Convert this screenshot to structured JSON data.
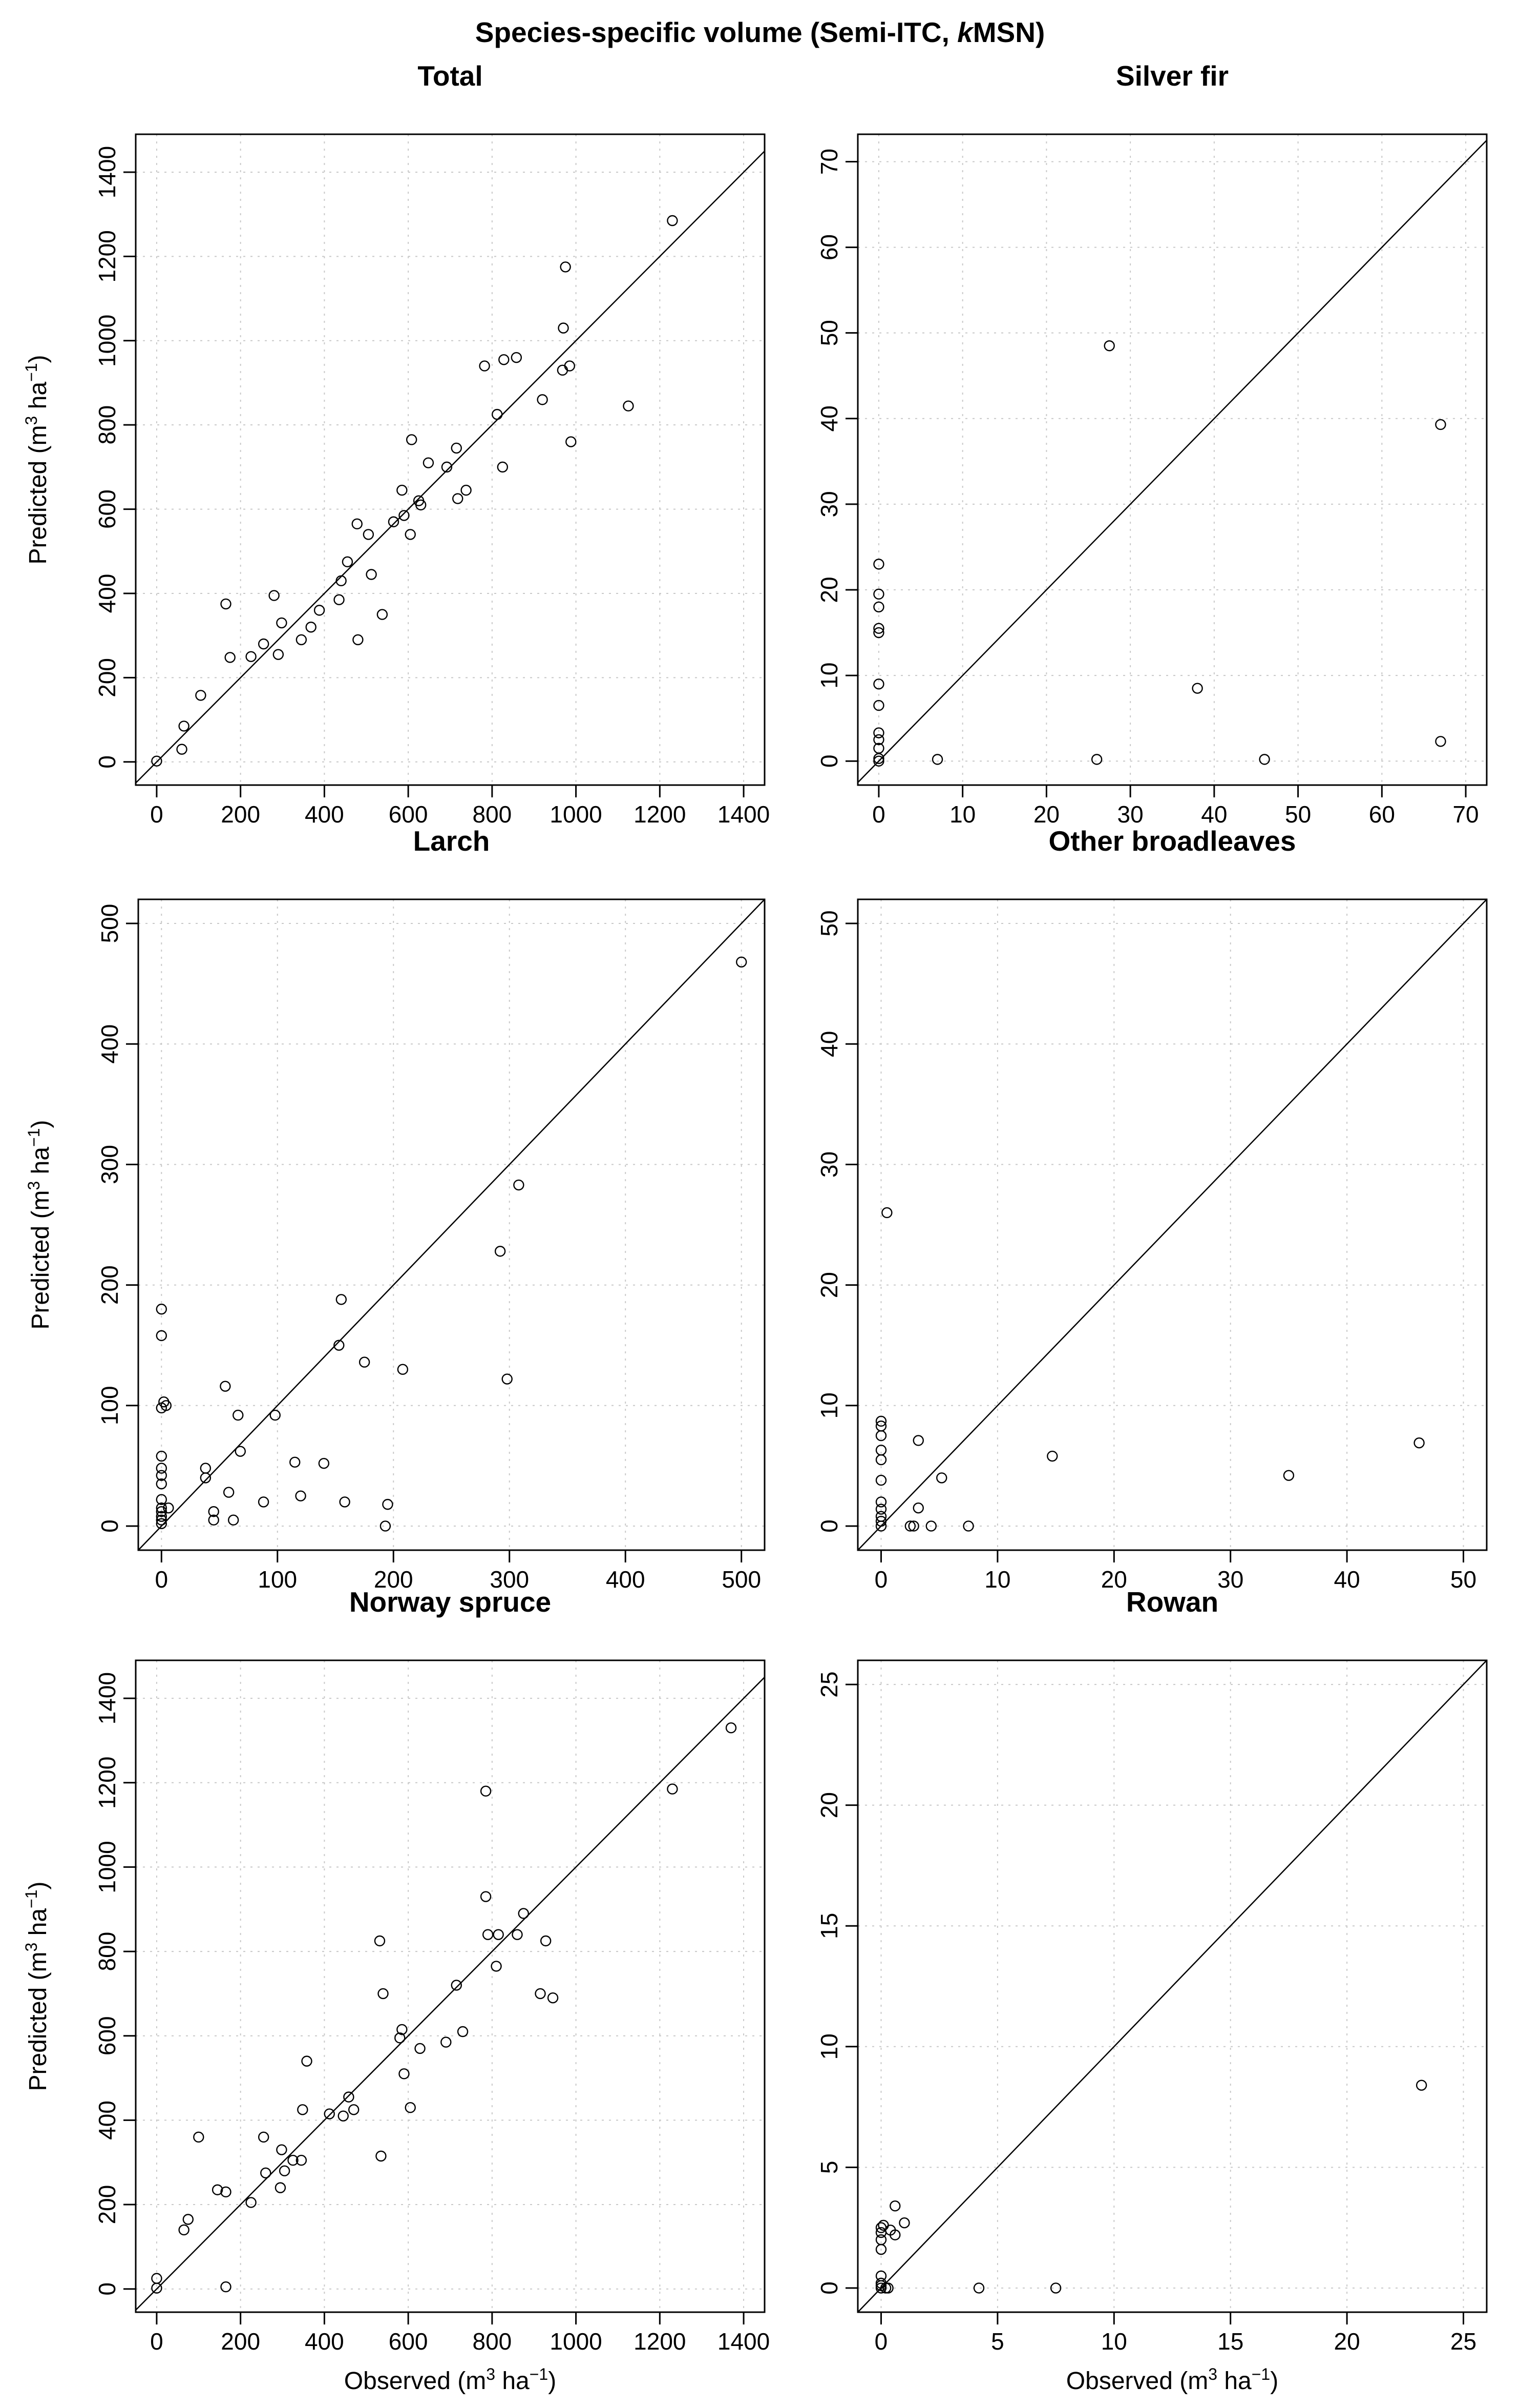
{
  "figure_title": {
    "main": "Species-specific volume (Semi-ITC, ",
    "k": "k",
    "rest": "MSN)"
  },
  "axis_labels": {
    "predicted": "Predicted (m",
    "observed": "Observed (m",
    "unit_sup": "3",
    "unit_mid": " ha",
    "unit_exp": "−1",
    "close": ")"
  },
  "chart_data": [
    {
      "type": "scatter",
      "title": "Total",
      "xlabel": "",
      "ylabel": "Predicted (m3 ha−1)",
      "xlim": [
        -50,
        1450
      ],
      "ylim": [
        -55,
        1490
      ],
      "ticks": [
        0,
        200,
        400,
        600,
        800,
        1000,
        1200,
        1400
      ],
      "grid": true,
      "identity_line": true,
      "points": [
        [
          0,
          2
        ],
        [
          60,
          30
        ],
        [
          65,
          85
        ],
        [
          105,
          158
        ],
        [
          165,
          375
        ],
        [
          175,
          248
        ],
        [
          225,
          250
        ],
        [
          255,
          280
        ],
        [
          280,
          395
        ],
        [
          290,
          255
        ],
        [
          298,
          330
        ],
        [
          345,
          290
        ],
        [
          368,
          320
        ],
        [
          388,
          360
        ],
        [
          435,
          385
        ],
        [
          440,
          430
        ],
        [
          455,
          475
        ],
        [
          478,
          565
        ],
        [
          480,
          290
        ],
        [
          505,
          540
        ],
        [
          512,
          445
        ],
        [
          538,
          350
        ],
        [
          565,
          570
        ],
        [
          585,
          645
        ],
        [
          590,
          585
        ],
        [
          605,
          540
        ],
        [
          608,
          765
        ],
        [
          625,
          620
        ],
        [
          630,
          610
        ],
        [
          648,
          710
        ],
        [
          692,
          700
        ],
        [
          715,
          745
        ],
        [
          718,
          625
        ],
        [
          738,
          645
        ],
        [
          782,
          940
        ],
        [
          812,
          825
        ],
        [
          825,
          700
        ],
        [
          828,
          955
        ],
        [
          858,
          960
        ],
        [
          920,
          860
        ],
        [
          968,
          930
        ],
        [
          970,
          1030
        ],
        [
          975,
          1175
        ],
        [
          985,
          940
        ],
        [
          988,
          760
        ],
        [
          1125,
          845
        ],
        [
          1230,
          1285
        ]
      ]
    },
    {
      "type": "scatter",
      "title": "Silver fir",
      "xlabel": "",
      "ylabel": "",
      "xlim": [
        -2.5,
        72.5
      ],
      "ylim": [
        -2.8,
        73.2
      ],
      "ticks": [
        0,
        10,
        20,
        30,
        40,
        50,
        60,
        70
      ],
      "grid": true,
      "identity_line": true,
      "points": [
        [
          0,
          0
        ],
        [
          0,
          0.3
        ],
        [
          0,
          1.5
        ],
        [
          0,
          2.5
        ],
        [
          0,
          3.3
        ],
        [
          0,
          6.5
        ],
        [
          0,
          9
        ],
        [
          0,
          15
        ],
        [
          0,
          15.5
        ],
        [
          0,
          18
        ],
        [
          0,
          19.5
        ],
        [
          0,
          23
        ],
        [
          7,
          0.2
        ],
        [
          26,
          0.2
        ],
        [
          27.5,
          48.5
        ],
        [
          38,
          8.5
        ],
        [
          46,
          0.2
        ],
        [
          67,
          2.3
        ],
        [
          67,
          39.3
        ]
      ]
    },
    {
      "type": "scatter",
      "title": "Larch",
      "xlabel": "",
      "ylabel": "Predicted (m3 ha−1)",
      "xlim": [
        -20,
        520
      ],
      "ylim": [
        -20,
        520
      ],
      "ticks": [
        0,
        100,
        200,
        300,
        400,
        500
      ],
      "grid": true,
      "identity_line": true,
      "points": [
        [
          0,
          2
        ],
        [
          0,
          5
        ],
        [
          0,
          8
        ],
        [
          0,
          12
        ],
        [
          0,
          15
        ],
        [
          0,
          22
        ],
        [
          0,
          35
        ],
        [
          0,
          42
        ],
        [
          0,
          48
        ],
        [
          0,
          58
        ],
        [
          0,
          98
        ],
        [
          0,
          158
        ],
        [
          0,
          180
        ],
        [
          2,
          103
        ],
        [
          4,
          100
        ],
        [
          6,
          15
        ],
        [
          38,
          48
        ],
        [
          38,
          40
        ],
        [
          45,
          12
        ],
        [
          45,
          5
        ],
        [
          55,
          116
        ],
        [
          58,
          28
        ],
        [
          62,
          5
        ],
        [
          66,
          92
        ],
        [
          68,
          62
        ],
        [
          88,
          20
        ],
        [
          98,
          92
        ],
        [
          115,
          53
        ],
        [
          120,
          25
        ],
        [
          140,
          52
        ],
        [
          153,
          150
        ],
        [
          155,
          188
        ],
        [
          158,
          20
        ],
        [
          175,
          136
        ],
        [
          193,
          0
        ],
        [
          195,
          18
        ],
        [
          208,
          130
        ],
        [
          292,
          228
        ],
        [
          298,
          122
        ],
        [
          308,
          283
        ],
        [
          500,
          468
        ]
      ]
    },
    {
      "type": "scatter",
      "title": "Other broadleaves",
      "xlabel": "",
      "ylabel": "",
      "xlim": [
        -2,
        52
      ],
      "ylim": [
        -2,
        52
      ],
      "ticks": [
        0,
        10,
        20,
        30,
        40,
        50
      ],
      "grid": true,
      "identity_line": true,
      "points": [
        [
          0,
          0
        ],
        [
          0,
          0.4
        ],
        [
          0,
          0.8
        ],
        [
          0,
          1.4
        ],
        [
          0,
          2
        ],
        [
          0,
          3.8
        ],
        [
          0,
          5.5
        ],
        [
          0,
          6.3
        ],
        [
          0,
          7.5
        ],
        [
          0,
          8.3
        ],
        [
          0,
          8.7
        ],
        [
          0.5,
          26
        ],
        [
          2.5,
          0
        ],
        [
          2.8,
          0
        ],
        [
          3.2,
          7.1
        ],
        [
          3.2,
          1.5
        ],
        [
          4.3,
          0
        ],
        [
          5.2,
          4
        ],
        [
          7.5,
          0
        ],
        [
          14.7,
          5.8
        ],
        [
          35,
          4.2
        ],
        [
          46.2,
          6.9
        ]
      ]
    },
    {
      "type": "scatter",
      "title": "Norway spruce",
      "xlabel": "Observed (m3 ha−1)",
      "ylabel": "Predicted (m3 ha−1)",
      "xlim": [
        -50,
        1450
      ],
      "ylim": [
        -55,
        1490
      ],
      "ticks": [
        0,
        200,
        400,
        600,
        800,
        1000,
        1200,
        1400
      ],
      "grid": true,
      "identity_line": true,
      "points": [
        [
          0,
          2
        ],
        [
          0,
          25
        ],
        [
          65,
          140
        ],
        [
          75,
          165
        ],
        [
          100,
          360
        ],
        [
          145,
          235
        ],
        [
          165,
          230
        ],
        [
          165,
          5
        ],
        [
          225,
          205
        ],
        [
          255,
          360
        ],
        [
          260,
          275
        ],
        [
          295,
          240
        ],
        [
          298,
          330
        ],
        [
          305,
          280
        ],
        [
          325,
          305
        ],
        [
          345,
          305
        ],
        [
          348,
          425
        ],
        [
          358,
          540
        ],
        [
          412,
          415
        ],
        [
          445,
          410
        ],
        [
          458,
          455
        ],
        [
          470,
          425
        ],
        [
          532,
          825
        ],
        [
          535,
          315
        ],
        [
          540,
          700
        ],
        [
          580,
          595
        ],
        [
          585,
          615
        ],
        [
          590,
          510
        ],
        [
          605,
          430
        ],
        [
          628,
          570
        ],
        [
          690,
          585
        ],
        [
          715,
          720
        ],
        [
          730,
          610
        ],
        [
          785,
          1180
        ],
        [
          785,
          930
        ],
        [
          790,
          840
        ],
        [
          810,
          765
        ],
        [
          815,
          840
        ],
        [
          860,
          840
        ],
        [
          875,
          890
        ],
        [
          915,
          700
        ],
        [
          928,
          825
        ],
        [
          945,
          690
        ],
        [
          1230,
          1185
        ],
        [
          1370,
          1330
        ]
      ]
    },
    {
      "type": "scatter",
      "title": "Rowan",
      "xlabel": "Observed (m3 ha−1)",
      "ylabel": "",
      "xlim": [
        -1,
        26
      ],
      "ylim": [
        -1,
        26
      ],
      "ticks": [
        0,
        5,
        10,
        15,
        20,
        25
      ],
      "grid": true,
      "identity_line": true,
      "points": [
        [
          0,
          0
        ],
        [
          0,
          0.1
        ],
        [
          0,
          0.2
        ],
        [
          0,
          0.5
        ],
        [
          0,
          1.6
        ],
        [
          0,
          2
        ],
        [
          0,
          2.3
        ],
        [
          0,
          2.5
        ],
        [
          0.1,
          2.6
        ],
        [
          0.2,
          0
        ],
        [
          0.3,
          0
        ],
        [
          0.4,
          2.4
        ],
        [
          0.6,
          2.2
        ],
        [
          0.6,
          3.4
        ],
        [
          1,
          2.7
        ],
        [
          4.2,
          0
        ],
        [
          7.5,
          0
        ],
        [
          23.2,
          8.4
        ]
      ]
    }
  ]
}
